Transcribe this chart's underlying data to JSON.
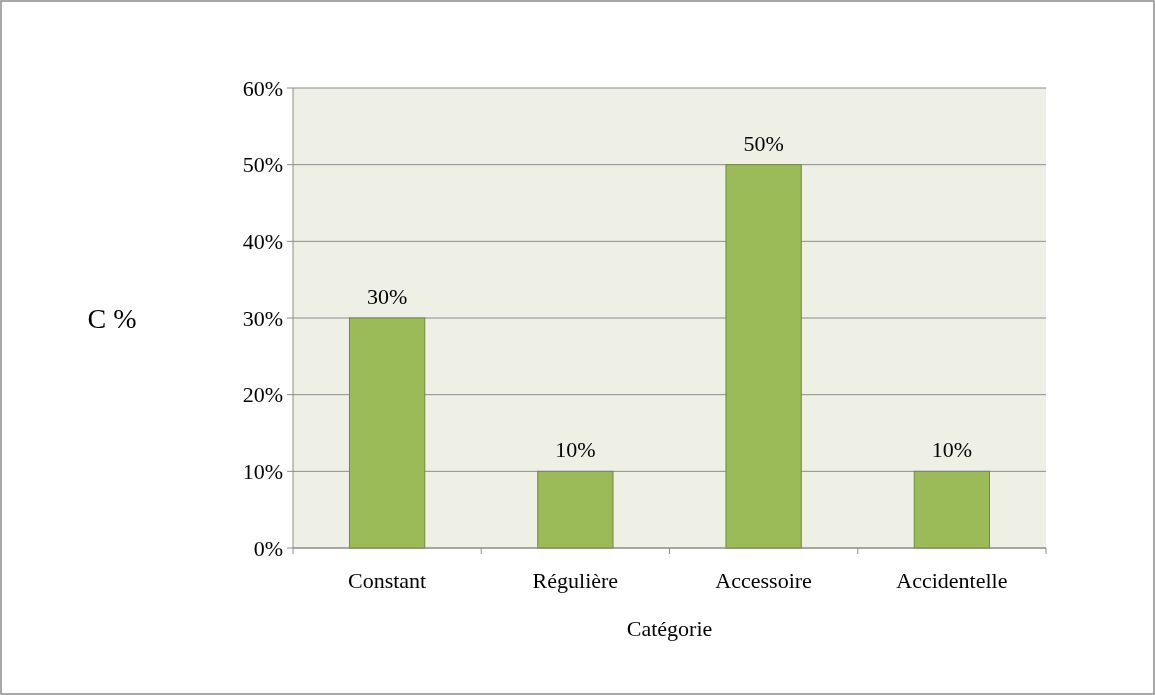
{
  "chart_data": {
    "type": "bar",
    "categories": [
      "Constant",
      "Régulière",
      "Accessoire",
      "Accidentelle"
    ],
    "values": [
      30,
      10,
      50,
      10
    ],
    "value_labels": [
      "30%",
      "10%",
      "50%",
      "10%"
    ],
    "color": "#9bbb59",
    "ylabel": "C %",
    "xlabel": "Catégorie",
    "ylim": [
      0,
      60
    ],
    "yticks": [
      {
        "value": 0,
        "label": "0%"
      },
      {
        "value": 10,
        "label": "10%"
      },
      {
        "value": 20,
        "label": "20%"
      },
      {
        "value": 30,
        "label": "30%"
      },
      {
        "value": 40,
        "label": "40%"
      },
      {
        "value": 50,
        "label": "50%"
      },
      {
        "value": 60,
        "label": "60%"
      }
    ],
    "grid": "y"
  }
}
